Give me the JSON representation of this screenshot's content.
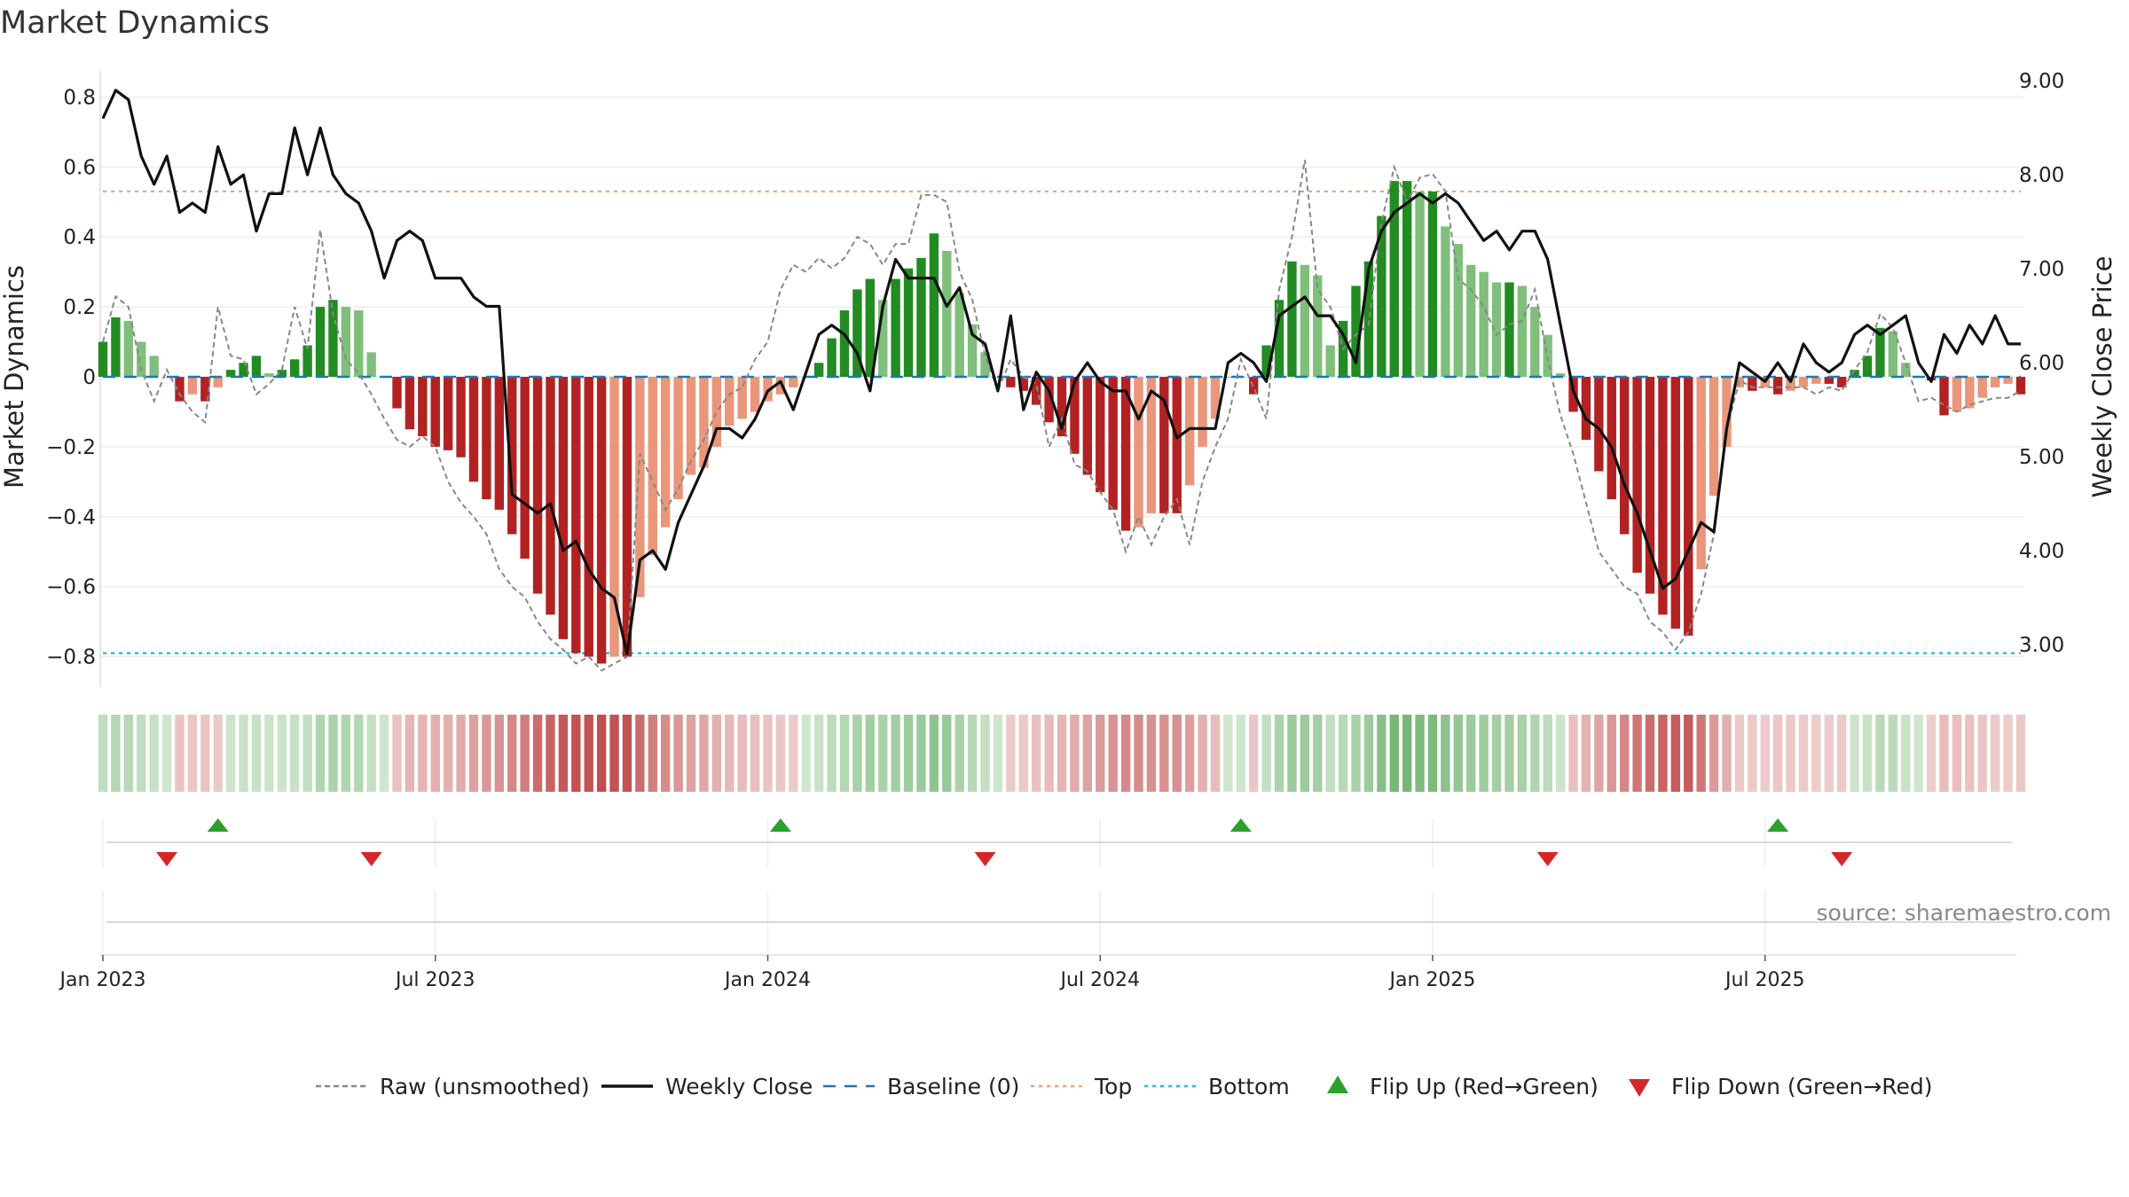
{
  "title": "Market Dynamics",
  "source": "source: sharemaestro.com",
  "chart_data": {
    "type": "bar",
    "title": "Market Dynamics",
    "ylabel": "Market Dynamics",
    "y2label": "Weekly Close Price",
    "ylim": [
      -0.9,
      0.9
    ],
    "y2lim": [
      2.5,
      9.2
    ],
    "y_ticks": [
      "0.8",
      "0.6",
      "0.4",
      "0.2",
      "0",
      "−0.2",
      "−0.4",
      "−0.6",
      "−0.8"
    ],
    "y_tick_values": [
      0.8,
      0.6,
      0.4,
      0.2,
      0,
      -0.2,
      -0.4,
      -0.6,
      -0.8
    ],
    "y2_ticks": [
      "9.00",
      "8.00",
      "7.00",
      "6.00",
      "5.00",
      "4.00",
      "3.00"
    ],
    "y2_tick_values": [
      9,
      8,
      7,
      6,
      5,
      4,
      3
    ],
    "x_ticks": [
      {
        "label": "Jan 2023",
        "week": 0
      },
      {
        "label": "Jul 2023",
        "week": 26
      },
      {
        "label": "Jan 2024",
        "week": 52
      },
      {
        "label": "Jul 2024",
        "week": 78
      },
      {
        "label": "Jan 2025",
        "week": 104
      },
      {
        "label": "Jul 2025",
        "week": 130
      }
    ],
    "x_start": "2022-12-26",
    "week_step_days": 7,
    "top_level": 0.53,
    "bottom_level": -0.79,
    "baseline": 0,
    "grid": true,
    "legend_placement": "bottom-center",
    "colors": {
      "green_strong": "#228b22",
      "green_light": "#7fbf7b",
      "red_strong": "#b22222",
      "red_light": "#e9967a",
      "raw_line": "#888888",
      "close_line": "#111111",
      "baseline": "#1f77b4",
      "top": "#f4a261",
      "bottom": "#17becf",
      "flip_up": "#2ca02c",
      "flip_down": "#d62728"
    },
    "series": [
      {
        "name": "Market Dynamics",
        "values": [
          0.1,
          0.17,
          0.16,
          0.1,
          0.06,
          0.0,
          -0.07,
          -0.05,
          -0.07,
          -0.03,
          0.02,
          0.04,
          0.06,
          0.01,
          0.02,
          0.05,
          0.09,
          0.2,
          0.22,
          0.2,
          0.19,
          0.07,
          0.0,
          -0.09,
          -0.15,
          -0.17,
          -0.2,
          -0.21,
          -0.23,
          -0.3,
          -0.35,
          -0.38,
          -0.45,
          -0.52,
          -0.62,
          -0.68,
          -0.75,
          -0.79,
          -0.8,
          -0.82,
          -0.8,
          -0.8,
          -0.63,
          -0.51,
          -0.43,
          -0.35,
          -0.28,
          -0.26,
          -0.2,
          -0.14,
          -0.12,
          -0.1,
          -0.07,
          -0.05,
          -0.03,
          0.0,
          0.04,
          0.11,
          0.19,
          0.25,
          0.28,
          0.22,
          0.28,
          0.31,
          0.34,
          0.41,
          0.36,
          0.24,
          0.15,
          0.07,
          0.0,
          -0.03,
          -0.04,
          -0.08,
          -0.13,
          -0.17,
          -0.22,
          -0.28,
          -0.33,
          -0.38,
          -0.44,
          -0.43,
          -0.39,
          -0.39,
          -0.39,
          -0.31,
          -0.2,
          -0.12,
          0.0,
          0.0,
          -0.05,
          0.09,
          0.22,
          0.33,
          0.32,
          0.29,
          0.09,
          0.16,
          0.26,
          0.33,
          0.46,
          0.56,
          0.56,
          0.53,
          0.53,
          0.43,
          0.38,
          0.32,
          0.3,
          0.27,
          0.27,
          0.26,
          0.2,
          0.12,
          0.01,
          -0.1,
          -0.18,
          -0.27,
          -0.35,
          -0.45,
          -0.56,
          -0.62,
          -0.68,
          -0.72,
          -0.74,
          -0.55,
          -0.34,
          -0.2,
          -0.03,
          -0.04,
          -0.03,
          -0.05,
          -0.04,
          -0.03,
          -0.02,
          -0.02,
          -0.03,
          0.02,
          0.06,
          0.14,
          0.13,
          0.04,
          0.0,
          -0.01,
          -0.11,
          -0.1,
          -0.09,
          -0.06,
          -0.03,
          -0.02,
          -0.05
        ]
      },
      {
        "name": "Raw (unsmoothed)",
        "values": [
          0.1,
          0.23,
          0.2,
          0.02,
          -0.07,
          0.02,
          -0.05,
          -0.1,
          -0.13,
          0.2,
          0.06,
          0.05,
          -0.05,
          -0.02,
          0.02,
          0.2,
          0.08,
          0.42,
          0.18,
          0.05,
          0.01,
          -0.05,
          -0.12,
          -0.18,
          -0.2,
          -0.17,
          -0.2,
          -0.3,
          -0.36,
          -0.4,
          -0.45,
          -0.55,
          -0.6,
          -0.63,
          -0.7,
          -0.75,
          -0.78,
          -0.82,
          -0.8,
          -0.84,
          -0.82,
          -0.8,
          -0.22,
          -0.3,
          -0.38,
          -0.32,
          -0.24,
          -0.18,
          -0.1,
          -0.05,
          -0.03,
          0.05,
          0.1,
          0.25,
          0.32,
          0.3,
          0.34,
          0.31,
          0.34,
          0.4,
          0.38,
          0.32,
          0.38,
          0.38,
          0.52,
          0.52,
          0.5,
          0.3,
          0.22,
          0.06,
          -0.04,
          0.05,
          0.0,
          -0.02,
          -0.2,
          -0.12,
          -0.25,
          -0.27,
          -0.33,
          -0.38,
          -0.5,
          -0.4,
          -0.48,
          -0.4,
          -0.35,
          -0.48,
          -0.3,
          -0.2,
          -0.12,
          0.05,
          -0.03,
          -0.12,
          0.25,
          0.4,
          0.62,
          0.25,
          0.2,
          0.08,
          0.12,
          0.15,
          0.44,
          0.6,
          0.5,
          0.57,
          0.58,
          0.53,
          0.28,
          0.25,
          0.2,
          0.12,
          0.15,
          0.16,
          0.25,
          0.05,
          -0.11,
          -0.22,
          -0.36,
          -0.5,
          -0.55,
          -0.6,
          -0.62,
          -0.7,
          -0.73,
          -0.78,
          -0.73,
          -0.62,
          -0.45,
          -0.15,
          -0.01,
          -0.03,
          -0.03,
          -0.03,
          -0.03,
          -0.03,
          -0.05,
          -0.03,
          -0.04,
          0.02,
          0.07,
          0.18,
          0.14,
          0.04,
          -0.07,
          -0.06,
          -0.08,
          -0.1,
          -0.08,
          -0.07,
          -0.06,
          -0.06,
          -0.04
        ]
      },
      {
        "name": "Weekly Close",
        "values": [
          8.6,
          8.9,
          8.8,
          8.2,
          7.9,
          8.2,
          7.6,
          7.7,
          7.6,
          8.3,
          7.9,
          8.0,
          7.4,
          7.8,
          7.8,
          8.5,
          8.0,
          8.5,
          8.0,
          7.8,
          7.7,
          7.4,
          6.9,
          7.3,
          7.4,
          7.3,
          6.9,
          6.9,
          6.9,
          6.7,
          6.6,
          6.6,
          4.6,
          4.5,
          4.4,
          4.5,
          4.0,
          4.1,
          3.8,
          3.6,
          3.5,
          2.9,
          3.9,
          4.0,
          3.8,
          4.3,
          4.6,
          4.9,
          5.3,
          5.3,
          5.2,
          5.4,
          5.7,
          5.8,
          5.5,
          5.9,
          6.3,
          6.4,
          6.3,
          6.1,
          5.7,
          6.6,
          7.1,
          6.9,
          6.9,
          6.9,
          6.6,
          6.8,
          6.3,
          6.2,
          5.7,
          6.5,
          5.5,
          5.9,
          5.7,
          5.3,
          5.8,
          6.0,
          5.8,
          5.7,
          5.7,
          5.4,
          5.7,
          5.6,
          5.2,
          5.3,
          5.3,
          5.3,
          6.0,
          6.1,
          6.0,
          5.8,
          6.5,
          6.6,
          6.7,
          6.5,
          6.5,
          6.3,
          6.0,
          7.0,
          7.4,
          7.6,
          7.7,
          7.8,
          7.7,
          7.8,
          7.7,
          7.5,
          7.3,
          7.4,
          7.2,
          7.4,
          7.4,
          7.1,
          6.4,
          5.7,
          5.4,
          5.3,
          5.1,
          4.7,
          4.4,
          4.0,
          3.6,
          3.7,
          4.0,
          4.3,
          4.2,
          5.3,
          6.0,
          5.9,
          5.8,
          6.0,
          5.8,
          6.2,
          6.0,
          5.9,
          6.0,
          6.3,
          6.4,
          6.3,
          6.4,
          6.5,
          6.0,
          5.8,
          6.3,
          6.1,
          6.4,
          6.2,
          6.5,
          6.2,
          6.2
        ]
      }
    ],
    "flip_up_weeks": [
      9,
      53,
      89,
      131
    ],
    "flip_down_weeks": [
      5,
      21,
      69,
      113,
      136
    ],
    "legend": [
      {
        "label": "Raw (unsmoothed)",
        "kind": "dashed-line",
        "color": "#888888"
      },
      {
        "label": "Weekly Close",
        "kind": "solid-line",
        "color": "#111111"
      },
      {
        "label": "Baseline (0)",
        "kind": "dash-line",
        "color": "#1f77b4"
      },
      {
        "label": "Top",
        "kind": "dotted-line",
        "color": "#f4a261"
      },
      {
        "label": "Bottom",
        "kind": "dotted-line",
        "color": "#17becf"
      },
      {
        "label": "Flip Up (Red→Green)",
        "kind": "triangle-up",
        "color": "#2ca02c"
      },
      {
        "label": "Flip Down (Green→Red)",
        "kind": "triangle-down",
        "color": "#d62728"
      }
    ]
  }
}
